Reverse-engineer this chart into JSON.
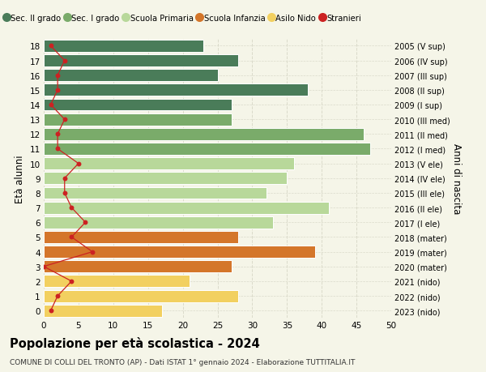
{
  "ages": [
    18,
    17,
    16,
    15,
    14,
    13,
    12,
    11,
    10,
    9,
    8,
    7,
    6,
    5,
    4,
    3,
    2,
    1,
    0
  ],
  "bar_values": [
    23,
    28,
    25,
    38,
    27,
    27,
    46,
    47,
    36,
    35,
    32,
    41,
    33,
    28,
    39,
    27,
    21,
    28,
    17
  ],
  "stranieri": [
    1,
    3,
    2,
    2,
    1,
    3,
    2,
    2,
    5,
    3,
    3,
    4,
    6,
    4,
    7,
    0,
    4,
    2,
    1
  ],
  "bar_colors": [
    "#4a7c59",
    "#4a7c59",
    "#4a7c59",
    "#4a7c59",
    "#4a7c59",
    "#7aab6a",
    "#7aab6a",
    "#7aab6a",
    "#b8d89a",
    "#b8d89a",
    "#b8d89a",
    "#b8d89a",
    "#b8d89a",
    "#d4762a",
    "#d4762a",
    "#d4762a",
    "#f2d060",
    "#f2d060",
    "#f2d060"
  ],
  "right_labels": [
    "2005 (V sup)",
    "2006 (IV sup)",
    "2007 (III sup)",
    "2008 (II sup)",
    "2009 (I sup)",
    "2010 (III med)",
    "2011 (II med)",
    "2012 (I med)",
    "2013 (V ele)",
    "2014 (IV ele)",
    "2015 (III ele)",
    "2016 (II ele)",
    "2017 (I ele)",
    "2018 (mater)",
    "2019 (mater)",
    "2020 (mater)",
    "2021 (nido)",
    "2022 (nido)",
    "2023 (nido)"
  ],
  "legend_labels": [
    "Sec. II grado",
    "Sec. I grado",
    "Scuola Primaria",
    "Scuola Infanzia",
    "Asilo Nido",
    "Stranieri"
  ],
  "legend_colors": [
    "#4a7c59",
    "#7aab6a",
    "#b8d89a",
    "#d4762a",
    "#f2d060",
    "#cc2222"
  ],
  "title": "Popolazione per età scolastica - 2024",
  "subtitle": "COMUNE DI COLLI DEL TRONTO (AP) - Dati ISTAT 1° gennaio 2024 - Elaborazione TUTTITALIA.IT",
  "ylabel": "Età alunni",
  "ylabel_right": "Anni di nascita",
  "xlim": [
    0,
    50
  ],
  "xticks": [
    0,
    5,
    10,
    15,
    20,
    25,
    30,
    35,
    40,
    45,
    50
  ],
  "background_color": "#f5f5e8",
  "grid_color": "#d8d8c8",
  "stranieri_color": "#cc2222",
  "bar_edge_color": "white"
}
